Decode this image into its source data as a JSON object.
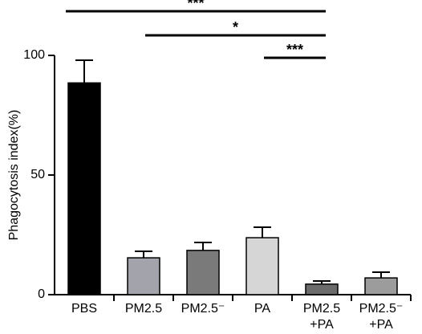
{
  "chart_data": {
    "type": "bar",
    "y_label": "Phagocytosis index(%)",
    "categories": [
      "PBS",
      "PM2.5",
      "PM2.5⁻",
      "PA",
      "PM2.5\n+PA",
      "PM2.5⁻\n+PA"
    ],
    "values": [
      88.5,
      15.4,
      18.5,
      23.8,
      4.4,
      7
    ],
    "errors": [
      9.5,
      2.7,
      3.3,
      4.4,
      1.3,
      2.4
    ],
    "colors": [
      "#000000",
      "#a3a3ab",
      "#7a7a7a",
      "#d6d6d6",
      "#6b6b6b",
      "#9c9c9c"
    ],
    "ylim": [
      0,
      100
    ],
    "yticks": [
      0,
      50,
      100
    ],
    "significance": [
      {
        "from": 0,
        "to": 4,
        "label": "***"
      },
      {
        "from": 1,
        "to": 4,
        "label": "*"
      },
      {
        "from": 3,
        "to": 4,
        "label": "***"
      }
    ]
  }
}
